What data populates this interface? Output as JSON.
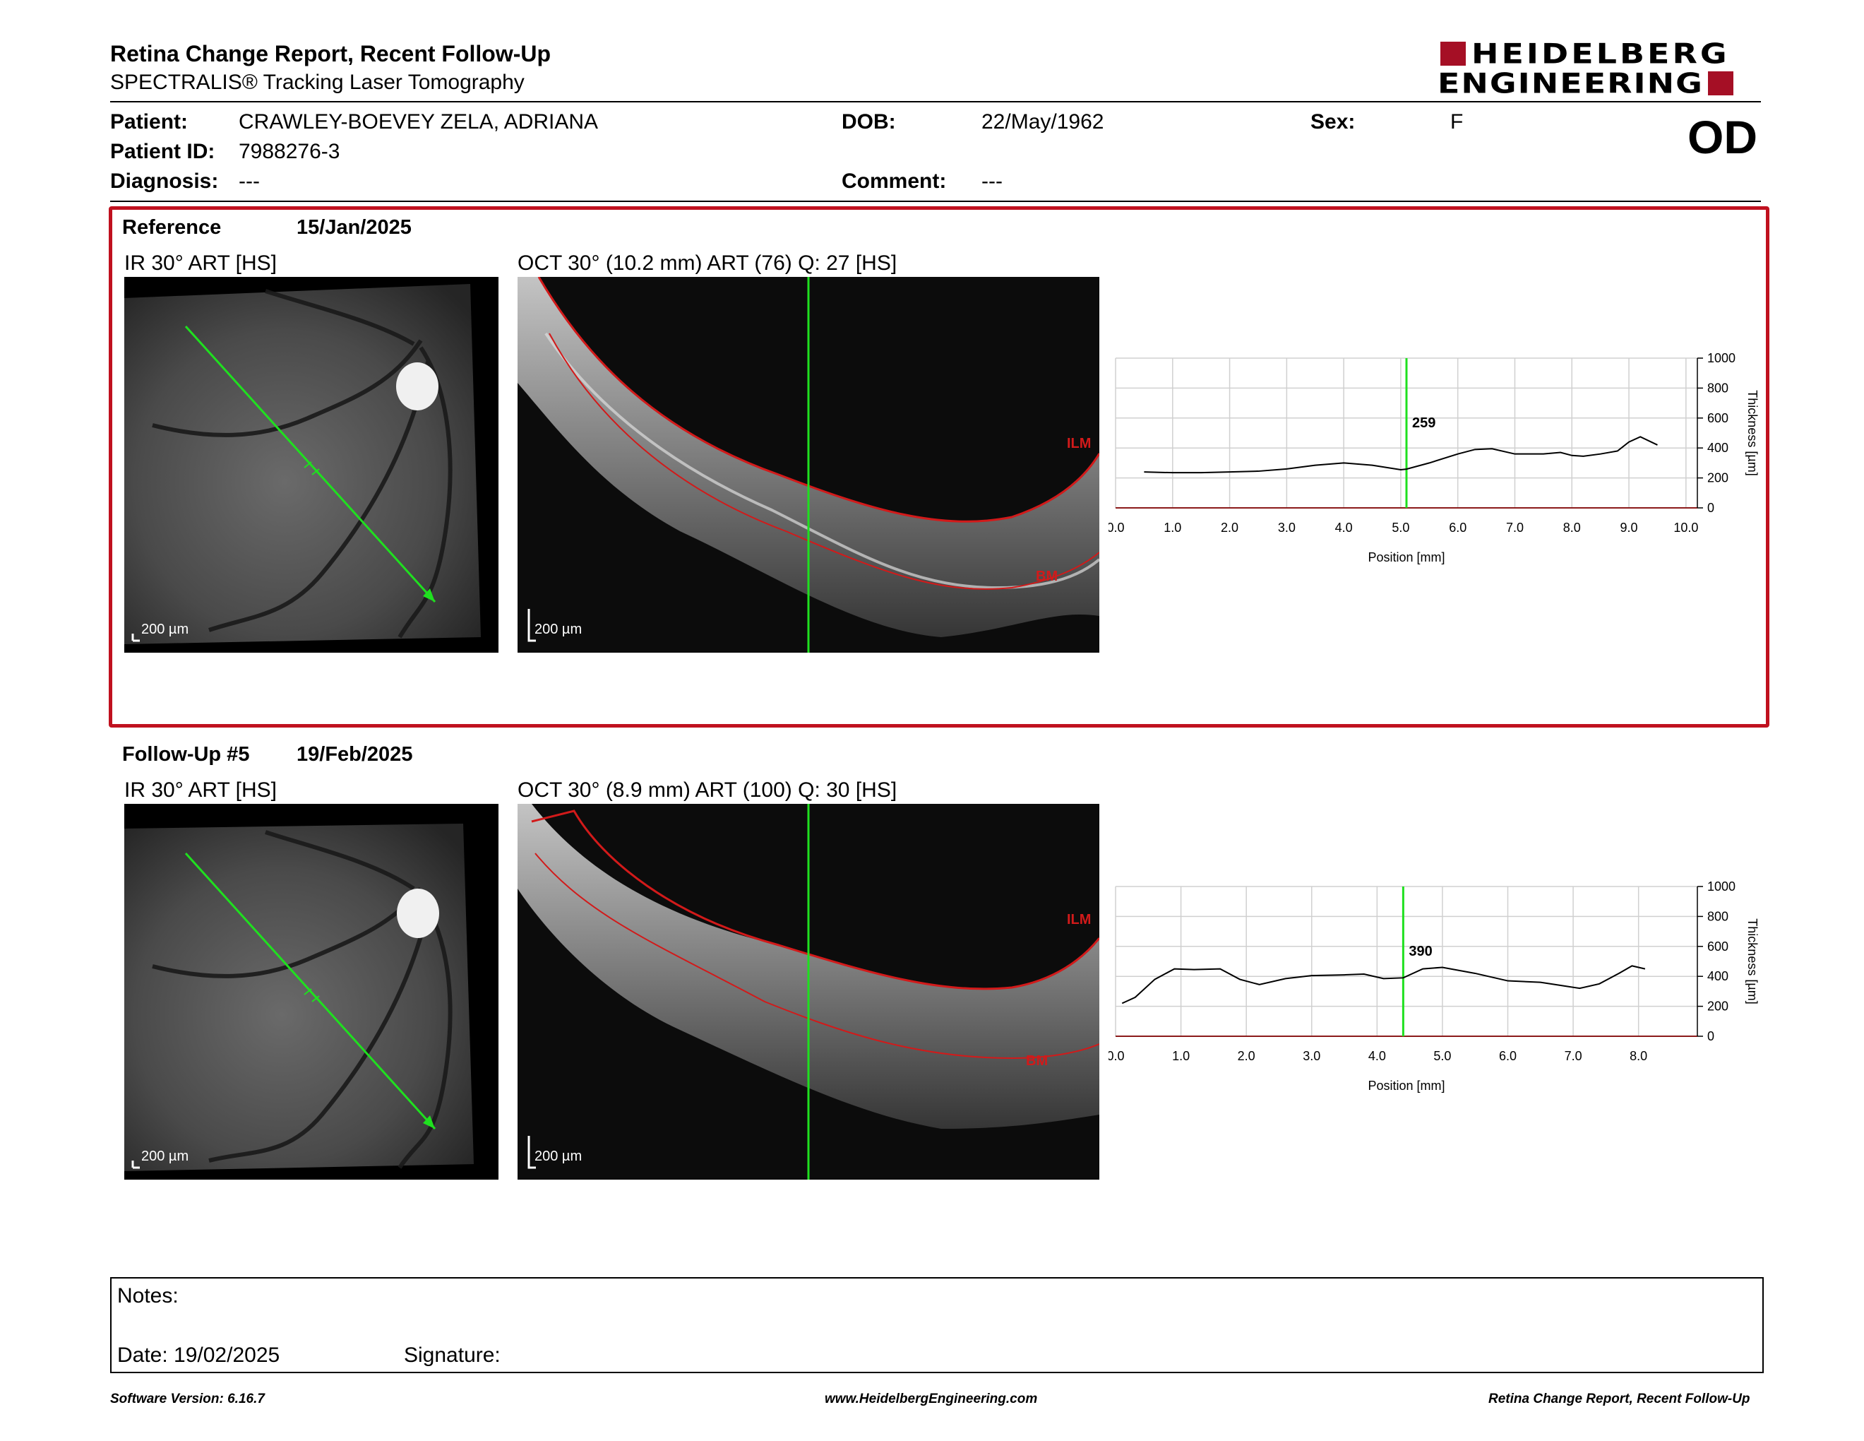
{
  "header": {
    "title": "Retina Change Report, Recent Follow-Up",
    "subtitle": "SPECTRALIS® Tracking Laser Tomography",
    "logo_line1": "HEIDELBERG",
    "logo_line2": "ENGINEERING",
    "eye": "OD"
  },
  "patient": {
    "patient_label": "Patient:",
    "patient_value": "CRAWLEY-BOEVEY ZELA, ADRIANA",
    "dob_label": "DOB:",
    "dob_value": "22/May/1962",
    "sex_label": "Sex:",
    "sex_value": "F",
    "id_label": "Patient ID:",
    "id_value": "7988276-3",
    "diagnosis_label": "Diagnosis:",
    "diagnosis_value": "---",
    "comment_label": "Comment:",
    "comment_value": "---"
  },
  "reference": {
    "label": "Reference",
    "date": "15/Jan/2025",
    "ir_label": "IR 30° ART [HS]",
    "oct_label": "OCT 30° (10.2 mm) ART (76) Q: 27 [HS]",
    "ir_scale": "200 µm",
    "oct_scale": "200 µm",
    "ilm": "ILM",
    "bm": "BM"
  },
  "followup": {
    "label": "Follow-Up #5",
    "date": "19/Feb/2025",
    "ir_label": "IR 30° ART [HS]",
    "oct_label": "OCT 30° (8.9 mm) ART (100) Q: 30 [HS]",
    "ir_scale": "200 µm",
    "oct_scale": "200 µm",
    "ilm": "ILM",
    "bm": "BM"
  },
  "chart_data": [
    {
      "type": "line",
      "xlabel": "Position [mm]",
      "ylabel": "Thickness [µm]",
      "xlim": [
        0,
        10.2
      ],
      "ylim": [
        0,
        1000
      ],
      "x_ticks": [
        0.0,
        1.0,
        2.0,
        3.0,
        4.0,
        5.0,
        6.0,
        7.0,
        8.0,
        9.0,
        10.0
      ],
      "x_tick_labels": [
        "0.0",
        "1.0",
        "2.0",
        "3.0",
        "4.0",
        "5.0",
        "6.0",
        "7.0",
        "8.0",
        "9.0",
        "10.0"
      ],
      "y_ticks": [
        0,
        200,
        400,
        600,
        800,
        1000
      ],
      "grid": true,
      "marker_x": 5.1,
      "marker_label": "259",
      "series": [
        {
          "x": [
            0.5,
            1.0,
            1.5,
            2.0,
            2.5,
            3.0,
            3.5,
            4.0,
            4.5,
            5.0,
            5.1,
            5.5,
            6.0,
            6.3,
            6.6,
            7.0,
            7.5,
            7.8,
            8.0,
            8.2,
            8.5,
            8.8,
            9.0,
            9.2,
            9.5
          ],
          "y": [
            240,
            235,
            235,
            240,
            245,
            260,
            285,
            300,
            285,
            255,
            259,
            300,
            360,
            390,
            395,
            360,
            360,
            370,
            350,
            345,
            360,
            380,
            440,
            475,
            420
          ]
        }
      ]
    },
    {
      "type": "line",
      "xlabel": "Position [mm]",
      "ylabel": "Thickness [µm]",
      "xlim": [
        0,
        8.9
      ],
      "ylim": [
        0,
        1000
      ],
      "x_ticks": [
        0.0,
        1.0,
        2.0,
        3.0,
        4.0,
        5.0,
        6.0,
        7.0,
        8.0
      ],
      "x_tick_labels": [
        "0.0",
        "1.0",
        "2.0",
        "3.0",
        "4.0",
        "5.0",
        "6.0",
        "7.0",
        "8.0"
      ],
      "y_ticks": [
        0,
        200,
        400,
        600,
        800,
        1000
      ],
      "grid": true,
      "marker_x": 4.4,
      "marker_label": "390",
      "series": [
        {
          "x": [
            0.1,
            0.3,
            0.6,
            0.9,
            1.2,
            1.6,
            1.9,
            2.2,
            2.6,
            3.0,
            3.5,
            3.8,
            4.1,
            4.4,
            4.7,
            5.0,
            5.5,
            6.0,
            6.5,
            6.8,
            7.1,
            7.4,
            7.7,
            7.9,
            8.1
          ],
          "y": [
            220,
            260,
            380,
            450,
            445,
            450,
            380,
            345,
            385,
            405,
            410,
            415,
            385,
            390,
            450,
            460,
            420,
            370,
            360,
            340,
            320,
            350,
            420,
            470,
            450
          ]
        }
      ]
    }
  ],
  "notes": {
    "notes_label": "Notes:",
    "date_label": "Date: 19/02/2025",
    "signature_label": "Signature:"
  },
  "footer": {
    "software": "Software Version: 6.16.7",
    "website": "www.HeidelbergEngineering.com",
    "report": "Retina Change Report, Recent Follow-Up"
  },
  "colors": {
    "brand_red": "#a50f25",
    "frame_red": "#c0111f",
    "scan_green": "#1fe01f",
    "segment_red": "#d21a1a"
  }
}
